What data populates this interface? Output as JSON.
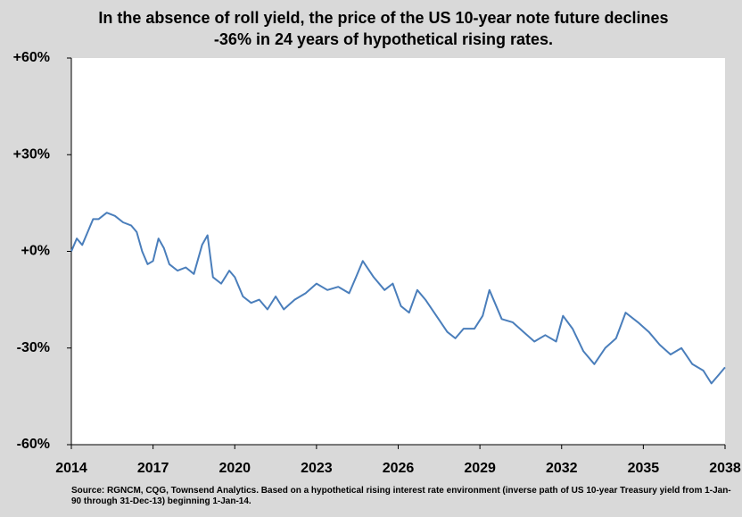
{
  "chart_data": {
    "type": "line",
    "title": "In the absence of roll yield, the price of the US 10-year note future declines -36% in 24 years of hypothetical rising rates.",
    "source": "Source: RGNCM, CQG, Townsend Analytics. Based on a hypothetical rising interest rate environment (inverse path of US 10-year Treasury yield from 1-Jan-90 through 31-Dec-13) beginning 1-Jan-14.",
    "color": "#4a7ebb",
    "x": [
      2014.0,
      2014.2,
      2014.4,
      2014.6,
      2014.8,
      2015.0,
      2015.3,
      2015.6,
      2015.9,
      2016.2,
      2016.4,
      2016.6,
      2016.8,
      2017.0,
      2017.2,
      2017.4,
      2017.6,
      2017.9,
      2018.2,
      2018.5,
      2018.8,
      2019.0,
      2019.2,
      2019.5,
      2019.8,
      2020.0,
      2020.3,
      2020.6,
      2020.9,
      2021.2,
      2021.5,
      2021.8,
      2022.2,
      2022.6,
      2023.0,
      2023.4,
      2023.8,
      2024.2,
      2024.45,
      2024.7,
      2025.1,
      2025.5,
      2025.8,
      2026.1,
      2026.4,
      2026.7,
      2027.0,
      2027.4,
      2027.8,
      2028.1,
      2028.4,
      2028.8,
      2029.1,
      2029.35,
      2029.8,
      2030.2,
      2030.6,
      2031.0,
      2031.4,
      2031.8,
      2032.05,
      2032.4,
      2032.8,
      2033.2,
      2033.6,
      2034.0,
      2034.35,
      2034.8,
      2035.2,
      2035.6,
      2036.0,
      2036.4,
      2036.8,
      2037.2,
      2037.5,
      2037.8,
      2038.0
    ],
    "values": [
      0,
      4,
      2,
      6,
      10,
      10,
      12,
      11,
      9,
      8,
      6,
      0,
      -4,
      -3,
      4,
      1,
      -4,
      -6,
      -5,
      -7,
      2,
      5,
      -8,
      -10,
      -6,
      -8,
      -14,
      -16,
      -15,
      -18,
      -14,
      -18,
      -15,
      -13,
      -10,
      -12,
      -11,
      -13,
      -8,
      -3,
      -8,
      -12,
      -10,
      -17,
      -19,
      -12,
      -15,
      -20,
      -25,
      -27,
      -24,
      -24,
      -20,
      -12,
      -21,
      -22,
      -25,
      -28,
      -26,
      -28,
      -20,
      -24,
      -31,
      -35,
      -30,
      -27,
      -19,
      -22,
      -25,
      -29,
      -32,
      -30,
      -35,
      -37,
      -41,
      -38,
      -36
    ],
    "xlim": [
      2014,
      2038
    ],
    "xticks": [
      2014,
      2017,
      2020,
      2023,
      2026,
      2029,
      2032,
      2035,
      2038
    ],
    "ylim": [
      -60,
      60
    ],
    "yticks": [
      {
        "value": -60,
        "label": "-60%"
      },
      {
        "value": -30,
        "label": "-30%"
      },
      {
        "value": 0,
        "label": "+0%"
      },
      {
        "value": 30,
        "label": "+30%"
      },
      {
        "value": 60,
        "label": "+60%"
      }
    ]
  }
}
